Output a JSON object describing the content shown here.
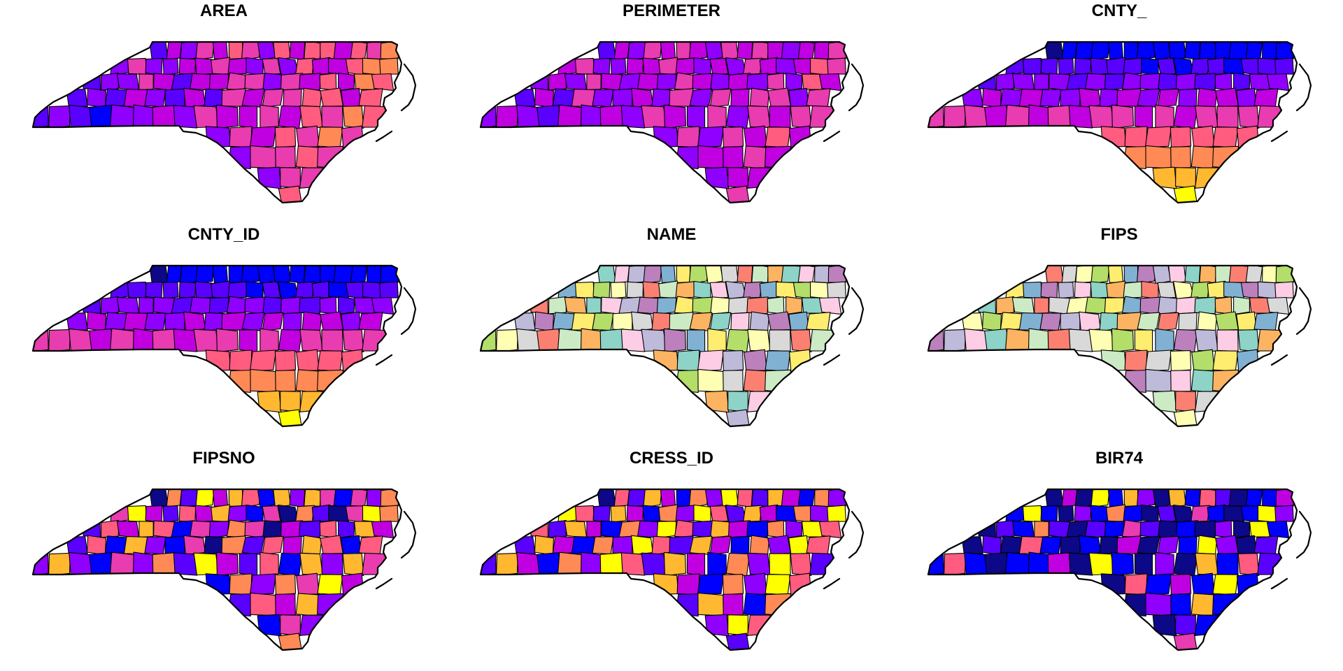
{
  "figure": {
    "subject": "North Carolina counties",
    "panels": [
      {
        "title": "AREA",
        "palette": "continuous"
      },
      {
        "title": "PERIMETER",
        "palette": "continuous"
      },
      {
        "title": "CNTY_",
        "palette": "continuous"
      },
      {
        "title": "CNTY_ID",
        "palette": "continuous"
      },
      {
        "title": "NAME",
        "palette": "categorical"
      },
      {
        "title": "FIPS",
        "palette": "categorical"
      },
      {
        "title": "FIPSNO",
        "palette": "continuous"
      },
      {
        "title": "CRESS_ID",
        "palette": "continuous"
      },
      {
        "title": "BIR74",
        "palette": "continuous"
      }
    ]
  },
  "colors": {
    "continuous_ramp": [
      "#0D0887",
      "#0000FF",
      "#5A00FF",
      "#8F00FF",
      "#C000E0",
      "#E83CB0",
      "#FF5C80",
      "#FF8A55",
      "#FFB830",
      "#FFFF00"
    ],
    "categorical": [
      "#8DD3C7",
      "#FFFFB3",
      "#BEBADA",
      "#FB8072",
      "#80B1D3",
      "#FDB462",
      "#B3DE69",
      "#FCCDE5",
      "#D9D9D9",
      "#BC80BD",
      "#CCEBC5",
      "#FFED6F"
    ],
    "border": "#000000"
  }
}
